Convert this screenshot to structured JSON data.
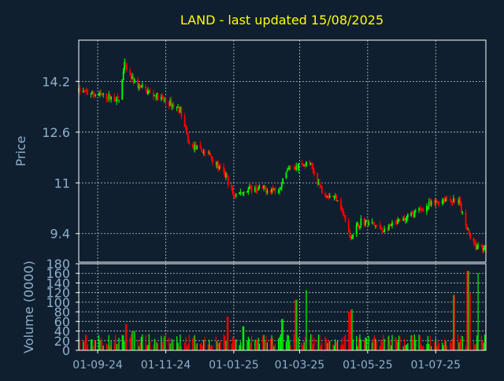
{
  "colors": {
    "background": "#0f1f2f",
    "frame": "#ffffff",
    "grid": "#ffffff",
    "title": "#ffff00",
    "label": "#8fb0cc",
    "up": "#00ff00",
    "down": "#ff0000"
  },
  "chart_data": [
    {
      "type": "candlestick",
      "title": "LAND - last updated 15/08/2025",
      "ylabel": "Price",
      "ylim": [
        8.5,
        15.5
      ],
      "yticks": [
        9.4,
        11,
        12.6,
        14.2
      ],
      "ytick_labels": [
        "9.4",
        "11",
        "12.6",
        "14.2"
      ],
      "xlim": [
        "2024-08-15",
        "2025-08-15"
      ],
      "xticks": [
        "2024-09-01",
        "2024-11-01",
        "2025-01-01",
        "2025-03-01",
        "2025-05-01",
        "2025-07-01"
      ],
      "xtick_labels": [
        "01-09-24",
        "01-11-24",
        "01-01-25",
        "01-03-25",
        "01-05-25",
        "01-07-25"
      ],
      "grid": true,
      "anchors": [
        [
          "2024-08-15",
          13.9
        ],
        [
          "2024-09-12",
          13.7
        ],
        [
          "2024-09-20",
          13.6
        ],
        [
          "2024-09-25",
          14.7
        ],
        [
          "2024-10-05",
          14.1
        ],
        [
          "2024-10-20",
          13.8
        ],
        [
          "2024-11-05",
          13.5
        ],
        [
          "2024-11-14",
          13.3
        ],
        [
          "2024-11-22",
          12.2
        ],
        [
          "2024-12-10",
          11.9
        ],
        [
          "2024-12-18",
          11.5
        ],
        [
          "2024-12-25",
          11.2
        ],
        [
          "2025-01-01",
          10.6
        ],
        [
          "2025-01-15",
          10.8
        ],
        [
          "2025-02-10",
          10.8
        ],
        [
          "2025-02-20",
          11.5
        ],
        [
          "2025-03-10",
          11.6
        ],
        [
          "2025-03-22",
          10.7
        ],
        [
          "2025-04-05",
          10.5
        ],
        [
          "2025-04-15",
          9.3
        ],
        [
          "2025-04-25",
          9.8
        ],
        [
          "2025-05-05",
          9.7
        ],
        [
          "2025-05-15",
          9.5
        ],
        [
          "2025-06-10",
          10.0
        ],
        [
          "2025-06-25",
          10.3
        ],
        [
          "2025-07-10",
          10.5
        ],
        [
          "2025-07-22",
          10.4
        ],
        [
          "2025-07-28",
          9.6
        ],
        [
          "2025-08-05",
          9.0
        ],
        [
          "2025-08-15",
          8.9
        ]
      ]
    },
    {
      "type": "bar",
      "ylabel": "Volume (0000)",
      "ylim": [
        0,
        180
      ],
      "yticks": [
        0,
        20,
        40,
        60,
        80,
        100,
        120,
        140,
        160,
        180
      ],
      "ytick_labels": [
        "0",
        "20",
        "40",
        "60",
        "80",
        "100",
        "120",
        "140",
        "160",
        "180"
      ],
      "grid": true,
      "base_volume": 20,
      "spikes": [
        [
          "2024-09-27",
          55
        ],
        [
          "2024-10-03",
          40
        ],
        [
          "2024-12-27",
          70
        ],
        [
          "2025-01-10",
          50
        ],
        [
          "2025-02-14",
          65
        ],
        [
          "2025-02-26",
          105
        ],
        [
          "2025-03-08",
          125
        ],
        [
          "2025-04-14",
          80
        ],
        [
          "2025-04-16",
          85
        ],
        [
          "2025-07-18",
          115
        ],
        [
          "2025-07-30",
          165
        ],
        [
          "2025-08-02",
          120
        ],
        [
          "2025-08-09",
          160
        ]
      ]
    }
  ]
}
